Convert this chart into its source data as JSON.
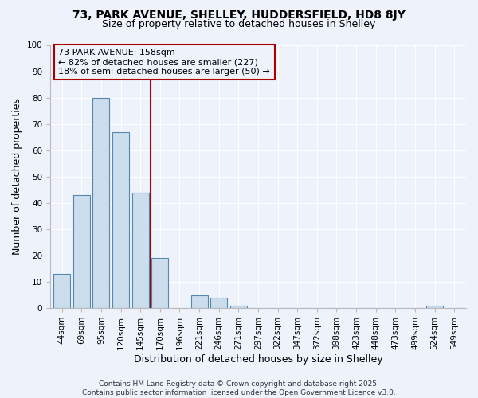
{
  "title_line1": "73, PARK AVENUE, SHELLEY, HUDDERSFIELD, HD8 8JY",
  "title_line2": "Size of property relative to detached houses in Shelley",
  "xlabel": "Distribution of detached houses by size in Shelley",
  "ylabel": "Number of detached properties",
  "bar_labels": [
    "44sqm",
    "69sqm",
    "95sqm",
    "120sqm",
    "145sqm",
    "170sqm",
    "196sqm",
    "221sqm",
    "246sqm",
    "271sqm",
    "297sqm",
    "322sqm",
    "347sqm",
    "372sqm",
    "398sqm",
    "423sqm",
    "448sqm",
    "473sqm",
    "499sqm",
    "524sqm",
    "549sqm"
  ],
  "bar_values": [
    13,
    43,
    80,
    67,
    44,
    19,
    0,
    5,
    4,
    1,
    0,
    0,
    0,
    0,
    0,
    0,
    0,
    0,
    0,
    1,
    0
  ],
  "bar_color": "#ccdded",
  "bar_edge_color": "#5588aa",
  "ylim": [
    0,
    100
  ],
  "yticks": [
    0,
    10,
    20,
    30,
    40,
    50,
    60,
    70,
    80,
    90,
    100
  ],
  "vline_color": "#aa0000",
  "annotation_text_line1": "73 PARK AVENUE: 158sqm",
  "annotation_text_line2": "← 82% of detached houses are smaller (227)",
  "annotation_text_line3": "18% of semi-detached houses are larger (50) →",
  "box_edge_color": "#aa0000",
  "footer_line1": "Contains HM Land Registry data © Crown copyright and database right 2025.",
  "footer_line2": "Contains public sector information licensed under the Open Government Licence v3.0.",
  "background_color": "#eef2fa",
  "grid_color": "#ffffff",
  "title_fontsize": 10,
  "subtitle_fontsize": 9,
  "axis_label_fontsize": 9,
  "tick_fontsize": 7.5,
  "annotation_fontsize": 8
}
